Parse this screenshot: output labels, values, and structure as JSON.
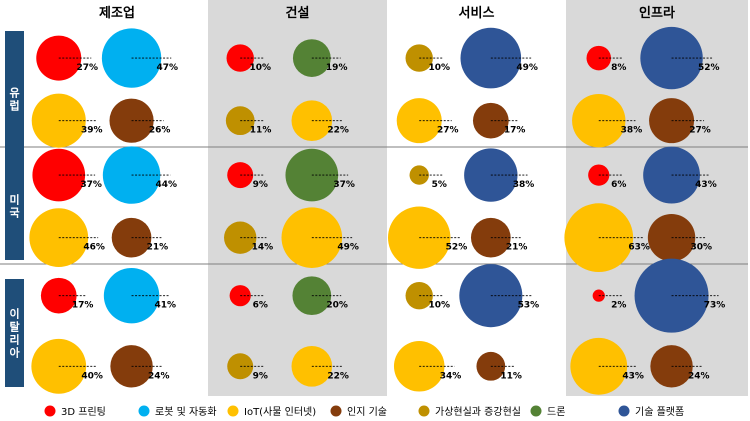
{
  "chart_data": {
    "type": "bubble-matrix",
    "columns": [
      "제조업",
      "건설",
      "서비스",
      "인프라"
    ],
    "rows": [
      "유럽",
      "미국",
      "이탈리아"
    ],
    "categories": [
      "3D 프린팅",
      "로봇 및 자동화",
      "IoT(사물 인터넷)",
      "인지 기술",
      "가상현실과 증강현실",
      "드론",
      "기술 플랫폼"
    ],
    "colors": {
      "3D 프린팅": "#ff0000",
      "로봇 및 자동화": "#00b0f0",
      "IoT(사물 인터넷)": "#ffc000",
      "인지 기술": "#843c0c",
      "가상현실과 증강현실": "#bf9000",
      "드론": "#548235",
      "기술 플랫폼": "#2f5597",
      "shaded_column_bg": "#d9d9d9",
      "row_label_bg": "#1f4e79"
    },
    "cells": [
      [
        [
          {
            "cat": "3D 프린팅",
            "value": 27,
            "label": "27%"
          },
          {
            "cat": "로봇 및 자동화",
            "value": 47,
            "label": "47%"
          },
          {
            "cat": "IoT(사물 인터넷)",
            "value": 39,
            "label": "39%"
          },
          {
            "cat": "인지 기술",
            "value": 26,
            "label": "26%"
          }
        ],
        [
          {
            "cat": "3D 프린팅",
            "value": 10,
            "label": "10%"
          },
          {
            "cat": "드론",
            "value": 19,
            "label": "19%"
          },
          {
            "cat": "가상현실과 증강현실",
            "value": 11,
            "label": "11%"
          },
          {
            "cat": "IoT(사물 인터넷)",
            "value": 22,
            "label": "22%"
          }
        ],
        [
          {
            "cat": "가상현실과 증강현실",
            "value": 10,
            "label": "10%"
          },
          {
            "cat": "기술 플랫폼",
            "value": 49,
            "label": "49%"
          },
          {
            "cat": "IoT(사물 인터넷)",
            "value": 27,
            "label": "27%"
          },
          {
            "cat": "인지 기술",
            "value": 17,
            "label": "17%"
          }
        ],
        [
          {
            "cat": "3D 프린팅",
            "value": 8,
            "label": "8%"
          },
          {
            "cat": "기술 플랫폼",
            "value": 52,
            "label": "52%"
          },
          {
            "cat": "IoT(사물 인터넷)",
            "value": 38,
            "label": "38%"
          },
          {
            "cat": "인지 기술",
            "value": 27,
            "label": "27%"
          }
        ]
      ],
      [
        [
          {
            "cat": "3D 프린팅",
            "value": 37,
            "label": "37%"
          },
          {
            "cat": "로봇 및 자동화",
            "value": 44,
            "label": "44%"
          },
          {
            "cat": "IoT(사물 인터넷)",
            "value": 46,
            "label": "46%"
          },
          {
            "cat": "인지 기술",
            "value": 21,
            "label": "21%"
          }
        ],
        [
          {
            "cat": "3D 프린팅",
            "value": 9,
            "label": "9%"
          },
          {
            "cat": "드론",
            "value": 37,
            "label": "37%"
          },
          {
            "cat": "가상현실과 증강현실",
            "value": 14,
            "label": "14%"
          },
          {
            "cat": "IoT(사물 인터넷)",
            "value": 49,
            "label": "49%"
          }
        ],
        [
          {
            "cat": "가상현실과 증강현실",
            "value": 5,
            "label": "5%"
          },
          {
            "cat": "기술 플랫폼",
            "value": 38,
            "label": "38%"
          },
          {
            "cat": "IoT(사물 인터넷)",
            "value": 52,
            "label": "52%"
          },
          {
            "cat": "인지 기술",
            "value": 21,
            "label": "21%"
          }
        ],
        [
          {
            "cat": "3D 프린팅",
            "value": 6,
            "label": "6%"
          },
          {
            "cat": "기술 플랫폼",
            "value": 43,
            "label": "43%"
          },
          {
            "cat": "IoT(사물 인터넷)",
            "value": 63,
            "label": "63%"
          },
          {
            "cat": "인지 기술",
            "value": 30,
            "label": "30%"
          }
        ]
      ],
      [
        [
          {
            "cat": "3D 프린팅",
            "value": 17,
            "label": "17%"
          },
          {
            "cat": "로봇 및 자동화",
            "value": 41,
            "label": "41%"
          },
          {
            "cat": "IoT(사물 인터넷)",
            "value": 40,
            "label": "40%"
          },
          {
            "cat": "인지 기술",
            "value": 24,
            "label": "24%"
          }
        ],
        [
          {
            "cat": "3D 프린팅",
            "value": 6,
            "label": "6%"
          },
          {
            "cat": "드론",
            "value": 20,
            "label": "20%"
          },
          {
            "cat": "가상현실과 증강현실",
            "value": 9,
            "label": "9%"
          },
          {
            "cat": "IoT(사물 인터넷)",
            "value": 22,
            "label": "22%"
          }
        ],
        [
          {
            "cat": "가상현실과 증강현실",
            "value": 10,
            "label": "10%"
          },
          {
            "cat": "기술 플랫폼",
            "value": 53,
            "label": "53%"
          },
          {
            "cat": "IoT(사물 인터넷)",
            "value": 34,
            "label": "34%"
          },
          {
            "cat": "인지 기술",
            "value": 11,
            "label": "11%"
          }
        ],
        [
          {
            "cat": "3D 프린팅",
            "value": 2,
            "label": "2%"
          },
          {
            "cat": "기술 플랫폼",
            "value": 73,
            "label": "73%"
          },
          {
            "cat": "IoT(사물 인터넷)",
            "value": 43,
            "label": "43%"
          },
          {
            "cat": "인지 기술",
            "value": 24,
            "label": "24%"
          }
        ]
      ]
    ],
    "legend": [
      "3D 프린팅",
      "로봇 및 자동화",
      "IoT(사물 인터넷)",
      "인지 기술",
      "가상현실과 증강현실",
      "드론",
      "기술 플랫폼"
    ],
    "legend_position": "bottom"
  }
}
